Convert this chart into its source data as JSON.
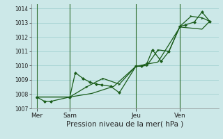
{
  "bg_color": "#cce8e8",
  "grid_color": "#99cccc",
  "line_color": "#1a5c1a",
  "xlabel": "Pression niveau de la mer( hPa )",
  "ylim": [
    1007.0,
    1014.3
  ],
  "yticks": [
    1007,
    1008,
    1009,
    1010,
    1011,
    1012,
    1013,
    1014
  ],
  "xlim": [
    0,
    17.0
  ],
  "day_labels": [
    "Mer",
    "Sam",
    "Jeu",
    "Ven"
  ],
  "day_positions": [
    0.5,
    3.5,
    9.5,
    13.5
  ],
  "vline_positions": [
    0.5,
    3.5,
    9.5,
    13.5
  ],
  "series1_x": [
    0.5,
    1.2,
    1.8,
    3.5,
    4.0,
    4.7,
    5.3,
    5.9,
    6.4,
    7.2,
    8.0,
    9.5,
    10.0,
    10.5,
    11.0,
    11.8,
    12.5,
    13.5,
    14.0,
    14.8,
    15.5,
    16.2
  ],
  "series1_y": [
    1007.8,
    1007.5,
    1007.5,
    1007.8,
    1009.5,
    1009.1,
    1008.85,
    1008.7,
    1008.65,
    1008.55,
    1008.1,
    1009.95,
    1009.95,
    1010.15,
    1011.1,
    1010.3,
    1011.0,
    1012.75,
    1012.85,
    1013.05,
    1013.75,
    1013.1
  ],
  "series2_x": [
    0.5,
    3.5,
    5.0,
    6.5,
    8.0,
    9.5,
    10.5,
    11.5,
    12.5,
    13.5,
    14.5,
    15.5,
    16.2
  ],
  "series2_y": [
    1007.8,
    1007.8,
    1008.5,
    1009.1,
    1008.7,
    1009.95,
    1010.0,
    1011.1,
    1011.0,
    1012.75,
    1013.45,
    1013.35,
    1013.1
  ],
  "series3_x": [
    0.5,
    3.5,
    5.5,
    7.5,
    9.5,
    11.5,
    13.5,
    15.5,
    16.2
  ],
  "series3_y": [
    1007.8,
    1007.8,
    1008.05,
    1008.55,
    1009.95,
    1010.25,
    1012.7,
    1012.55,
    1013.1
  ],
  "marker1": "D",
  "marker2": ">",
  "markersize": 2.5,
  "linewidth": 0.9
}
